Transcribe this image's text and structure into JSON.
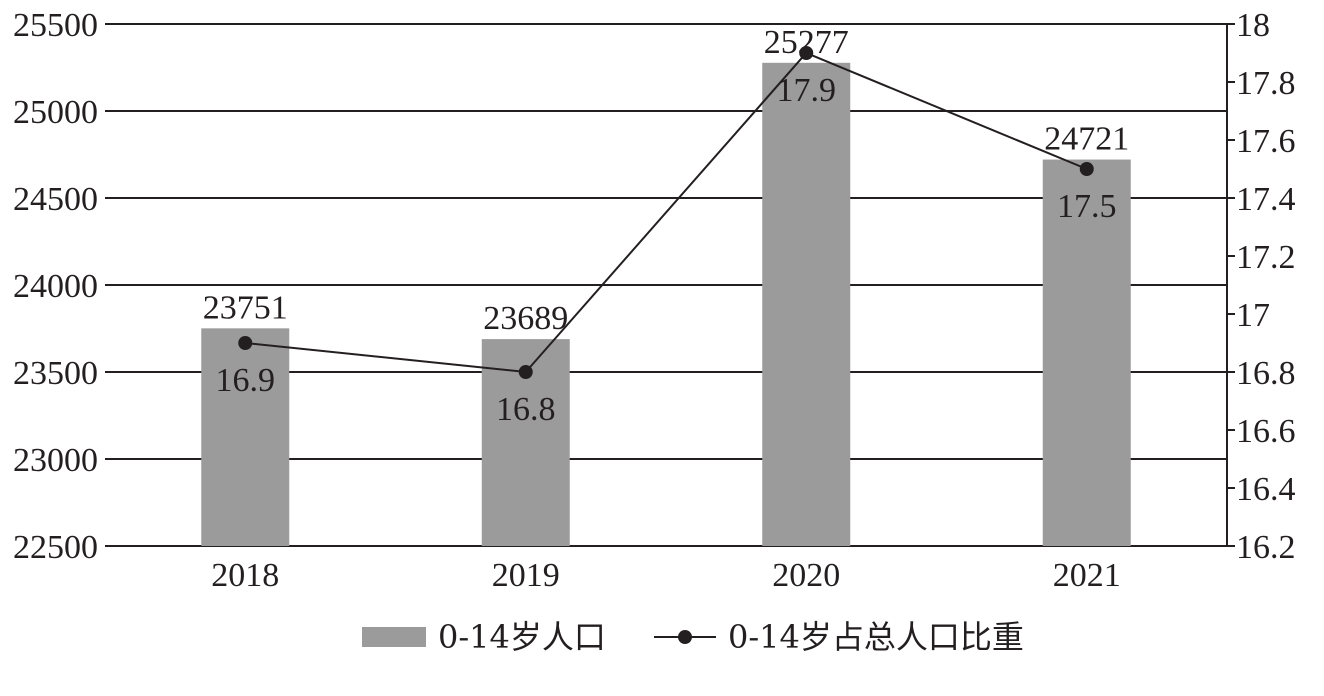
{
  "chart_data": {
    "type": "bar",
    "categories": [
      "2018",
      "2019",
      "2020",
      "2021"
    ],
    "series": [
      {
        "name": "0-14岁人口",
        "type": "bar",
        "axis": "left",
        "values": [
          23751,
          23689,
          25277,
          24721
        ],
        "color": "#9b9b9b"
      },
      {
        "name": "0-14岁占总人口比重",
        "type": "line",
        "axis": "right",
        "values": [
          16.9,
          16.8,
          17.9,
          17.5
        ],
        "color": "#231f20"
      }
    ],
    "y_left": {
      "ylim": [
        22500,
        25500
      ],
      "ticks": [
        "22500",
        "23000",
        "23500",
        "24000",
        "24500",
        "25000",
        "25500"
      ]
    },
    "y_right": {
      "ylim": [
        16.2,
        18
      ],
      "ticks": [
        "16.2",
        "16.4",
        "16.6",
        "16.8",
        "17",
        "17.2",
        "17.4",
        "17.6",
        "17.8",
        "18"
      ]
    },
    "bar_labels": [
      "23751",
      "23689",
      "25277",
      "24721"
    ],
    "line_labels": [
      "16.9",
      "16.8",
      "17.9",
      "17.5"
    ],
    "grid": true,
    "legend_position": "bottom-center",
    "title": "",
    "xlabel": "",
    "ylabel": ""
  }
}
